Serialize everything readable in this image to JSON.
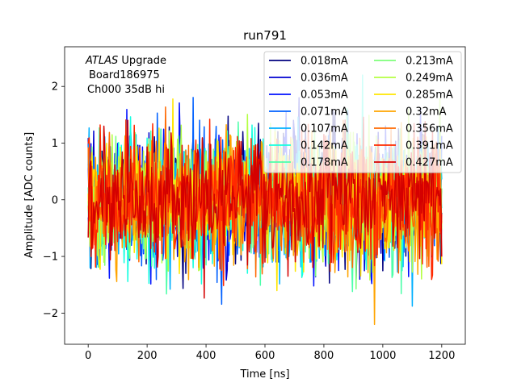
{
  "chart_data": {
    "type": "line",
    "title": "run791",
    "xlabel": "Time [ns]",
    "ylabel": "Amplitude [ADC counts]",
    "xlim": [
      -80,
      1280
    ],
    "ylim": [
      -2.55,
      2.7
    ],
    "x_ticks": [
      {
        "value": 0,
        "label": "0"
      },
      {
        "value": 200,
        "label": "200"
      },
      {
        "value": 400,
        "label": "400"
      },
      {
        "value": 600,
        "label": "600"
      },
      {
        "value": 800,
        "label": "800"
      },
      {
        "value": 1000,
        "label": "1000"
      },
      {
        "value": 1200,
        "label": "1200"
      }
    ],
    "y_ticks": [
      {
        "value": -2,
        "label": "−2"
      },
      {
        "value": -1,
        "label": "−1"
      },
      {
        "value": 0,
        "label": "0"
      },
      {
        "value": 1,
        "label": "1"
      },
      {
        "value": 2,
        "label": "2"
      }
    ],
    "grid": false,
    "legend_position": "top-right",
    "legend_columns": 2,
    "annotation": {
      "atlas": "ATLAS",
      "line1_rest": "Upgrade",
      "line2": "Board186975",
      "line3": "Ch000 35dB hi"
    },
    "sample_spacing_ns": 3.125,
    "x_range": [
      0,
      1200
    ],
    "series": [
      {
        "name": "0.018mA",
        "color": "#00007f",
        "amplitude_rms": 0.55,
        "seed": 11
      },
      {
        "name": "0.036mA",
        "color": "#0000d0",
        "amplitude_rms": 0.55,
        "seed": 23
      },
      {
        "name": "0.053mA",
        "color": "#0010ff",
        "amplitude_rms": 0.55,
        "seed": 37
      },
      {
        "name": "0.071mA",
        "color": "#0060ff",
        "amplitude_rms": 0.55,
        "seed": 41
      },
      {
        "name": "0.107mA",
        "color": "#00b0ff",
        "amplitude_rms": 0.55,
        "seed": 53
      },
      {
        "name": "0.142mA",
        "color": "#16ffe1",
        "amplitude_rms": 0.55,
        "seed": 67
      },
      {
        "name": "0.178mA",
        "color": "#4dffaa",
        "amplitude_rms": 0.55,
        "seed": 71
      },
      {
        "name": "0.213mA",
        "color": "#7dff7a",
        "amplitude_rms": 0.55,
        "seed": 83
      },
      {
        "name": "0.249mA",
        "color": "#b4ff43",
        "amplitude_rms": 0.55,
        "seed": 97
      },
      {
        "name": "0.285mA",
        "color": "#ffe600",
        "amplitude_rms": 0.55,
        "seed": 101
      },
      {
        "name": "0.32mA",
        "color": "#ffa400",
        "amplitude_rms": 0.55,
        "seed": 113
      },
      {
        "name": "0.356mA",
        "color": "#ff6800",
        "amplitude_rms": 0.55,
        "seed": 127
      },
      {
        "name": "0.391mA",
        "color": "#ff2900",
        "amplitude_rms": 0.55,
        "seed": 131
      },
      {
        "name": "0.427mA",
        "color": "#d40000",
        "amplitude_rms": 0.55,
        "seed": 149
      }
    ]
  }
}
